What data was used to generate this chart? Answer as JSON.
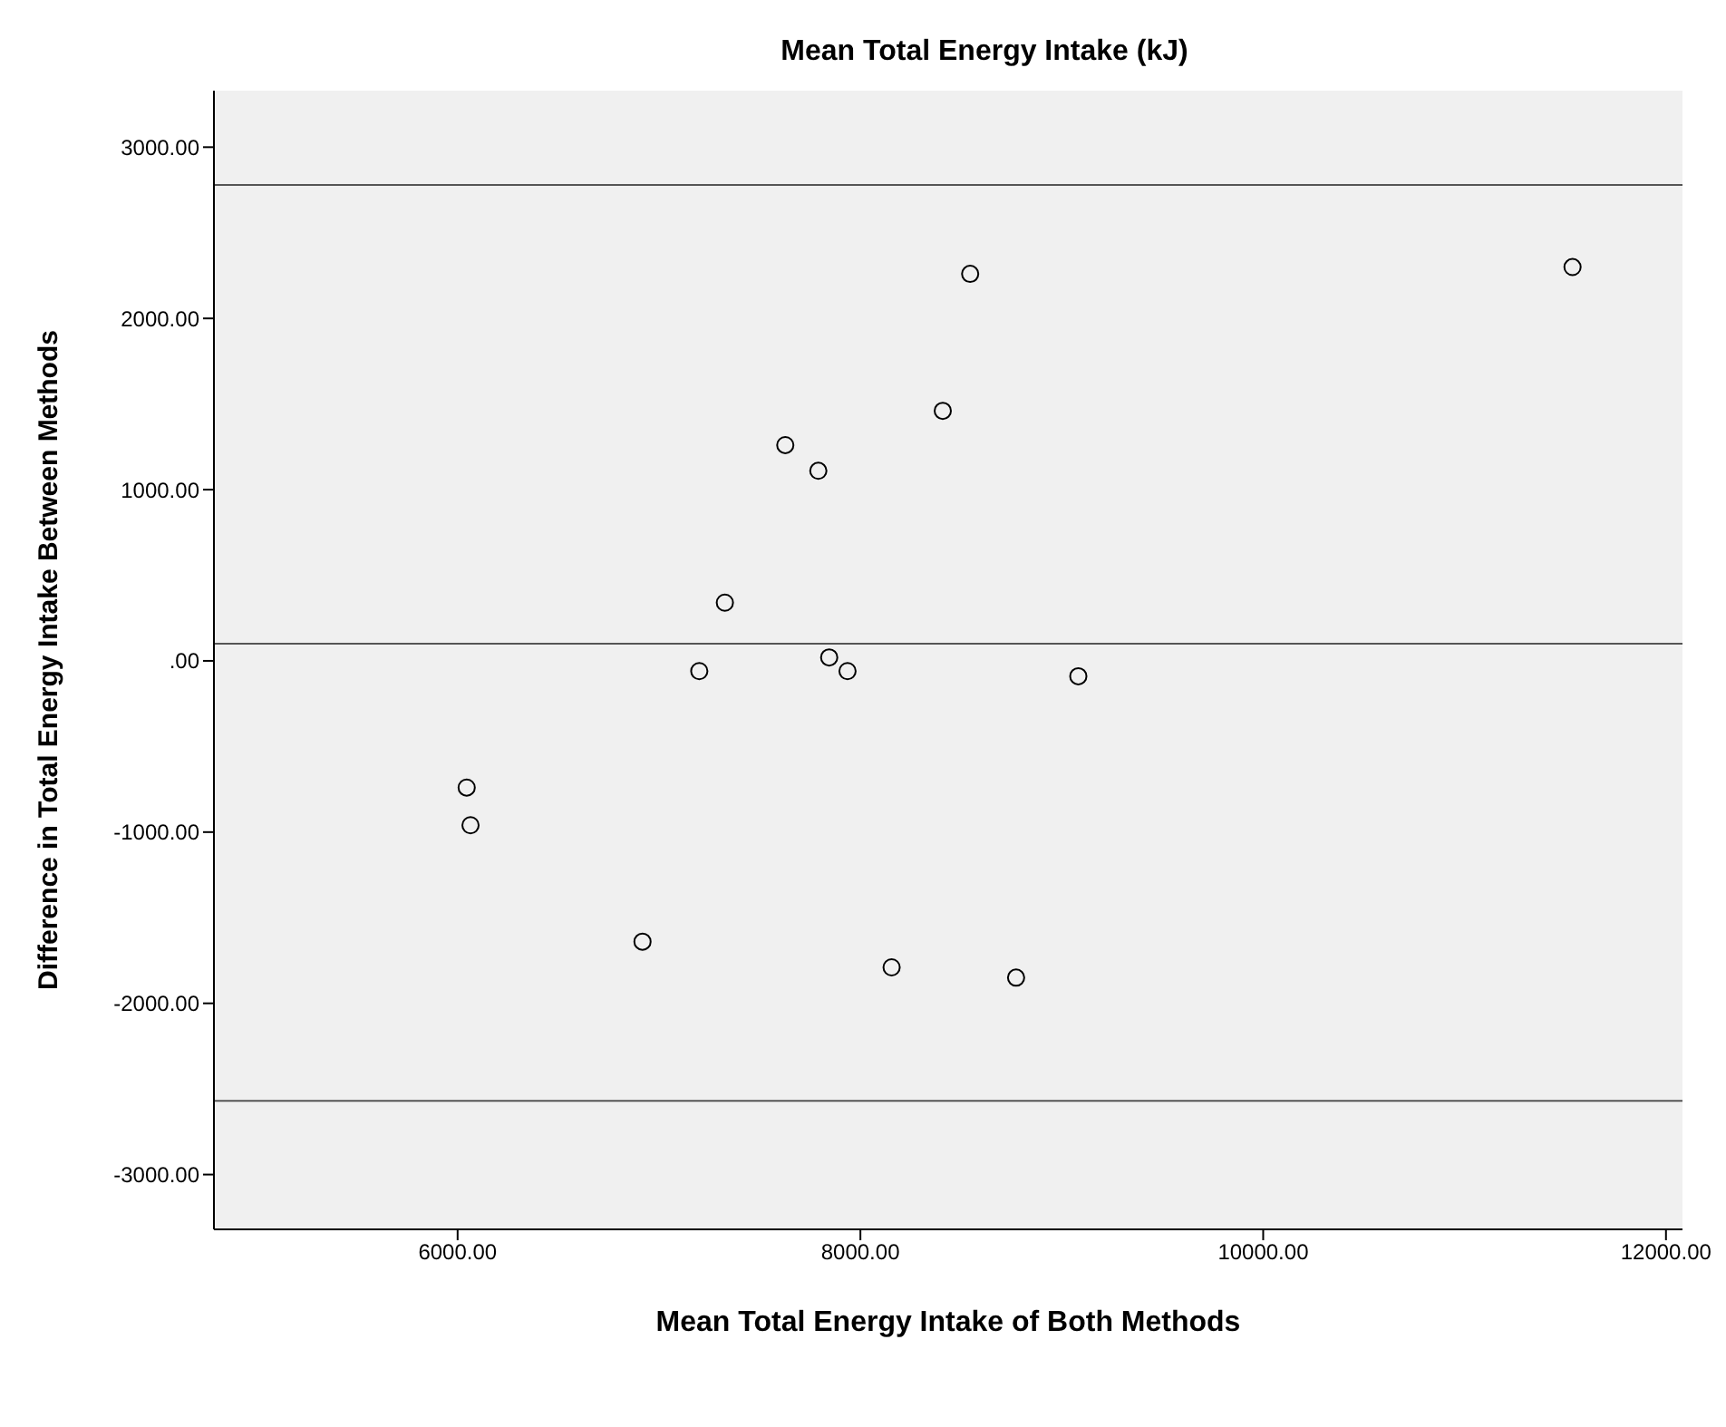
{
  "chart_data": {
    "type": "scatter",
    "title": "Mean Total Energy Intake (kJ)",
    "xlabel": "Mean Total Energy Intake of Both Methods",
    "ylabel": "Difference in Total Energy Intake Between Methods",
    "x": [
      8545,
      11536,
      8409,
      7627,
      7791,
      7327,
      7200,
      7845,
      7936,
      9082,
      6045,
      6064,
      6918,
      8155,
      8773
    ],
    "series": [
      {
        "color": "#000000",
        "values": [
          2260,
          2300,
          1460,
          1260,
          1110,
          340,
          -60,
          20,
          -60,
          -90,
          -740,
          -960,
          -1640,
          -1790,
          -1850
        ]
      }
    ],
    "xlim": [
      4790,
      12082
    ],
    "ylim": [
      -3320,
      3330
    ],
    "xticks": [
      {
        "value": 6000,
        "label": "6000.00"
      },
      {
        "value": 8000,
        "label": "8000.00"
      },
      {
        "value": 10000,
        "label": "10000.00"
      },
      {
        "value": 12000,
        "label": "12000.00"
      }
    ],
    "yticks": [
      {
        "value": -3000,
        "label": "-3000.00"
      },
      {
        "value": -2000,
        "label": "-2000.00"
      },
      {
        "value": -1000,
        "label": "-1000.00"
      },
      {
        "value": 0,
        "label": ".00"
      },
      {
        "value": 1000,
        "label": "1000.00"
      },
      {
        "value": 2000,
        "label": "2000.00"
      },
      {
        "value": 3000,
        "label": "3000.00"
      }
    ],
    "ref_lines": [
      {
        "axis": "y",
        "value": 2780,
        "color": "#555555"
      },
      {
        "axis": "y",
        "value": 100,
        "color": "#555555"
      },
      {
        "axis": "y",
        "value": -2570,
        "color": "#555555"
      }
    ],
    "marker": "circle",
    "grid": false,
    "legend": false
  }
}
